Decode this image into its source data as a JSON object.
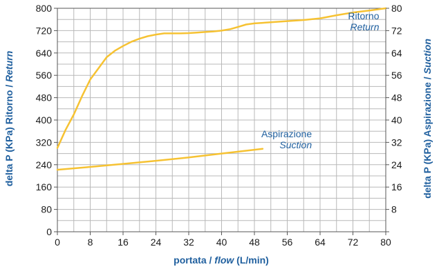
{
  "chart_data": {
    "type": "line",
    "xlabel": {
      "prefix": "portata / ",
      "italic": "flow",
      "suffix": " (L/min)"
    },
    "ylabel_left": {
      "prefix": "delta P (KPa) Ritorno / ",
      "italic": "Return"
    },
    "ylabel_right": {
      "prefix": "delta P (KPa) Aspirazione / ",
      "italic": "Suction"
    },
    "xlim": [
      0,
      80
    ],
    "ylim_left": [
      0,
      800
    ],
    "ylim_right": [
      0,
      80
    ],
    "x_ticks": [
      0,
      8,
      16,
      24,
      32,
      40,
      48,
      56,
      64,
      72,
      80
    ],
    "y_ticks_left": [
      0,
      80,
      160,
      240,
      320,
      400,
      480,
      560,
      640,
      720,
      800
    ],
    "y_ticks_right": [
      "",
      8,
      16,
      24,
      32,
      40,
      48,
      56,
      64,
      72,
      80
    ],
    "grid": {
      "x_step": 4,
      "y_step": 40
    },
    "colors": {
      "line": "#f6c232",
      "grid": "#b8b8b8",
      "text": "#1f5f9e"
    },
    "series": [
      {
        "name": "Ritorno",
        "name_italic": "Return",
        "axis": "left",
        "x": [
          0,
          2,
          4,
          6,
          8,
          10,
          12,
          14,
          16,
          18,
          20,
          22,
          24,
          26,
          28,
          30,
          32,
          34,
          36,
          38,
          40,
          42,
          44,
          46,
          48,
          52,
          56,
          60,
          64,
          68,
          72,
          76,
          80
        ],
        "y": [
          300,
          365,
          420,
          485,
          545,
          585,
          625,
          648,
          665,
          680,
          691,
          700,
          706,
          710,
          710,
          710,
          711,
          713,
          715,
          717,
          720,
          725,
          733,
          742,
          746,
          750,
          754,
          758,
          764,
          775,
          785,
          792,
          800
        ]
      },
      {
        "name": "Aspirazione",
        "name_italic": "Suction",
        "axis": "left",
        "x": [
          0,
          8,
          16,
          24,
          32,
          40,
          50
        ],
        "y": [
          222,
          232,
          243,
          254,
          266,
          280,
          297
        ]
      }
    ],
    "annotations": [
      {
        "text": "Ritorno",
        "italic": "Return",
        "x": 78.4,
        "y": 760,
        "anchor": "end"
      },
      {
        "text": "Aspirazione",
        "italic": "Suction",
        "x": 62,
        "y": 338,
        "anchor": "end"
      }
    ]
  }
}
